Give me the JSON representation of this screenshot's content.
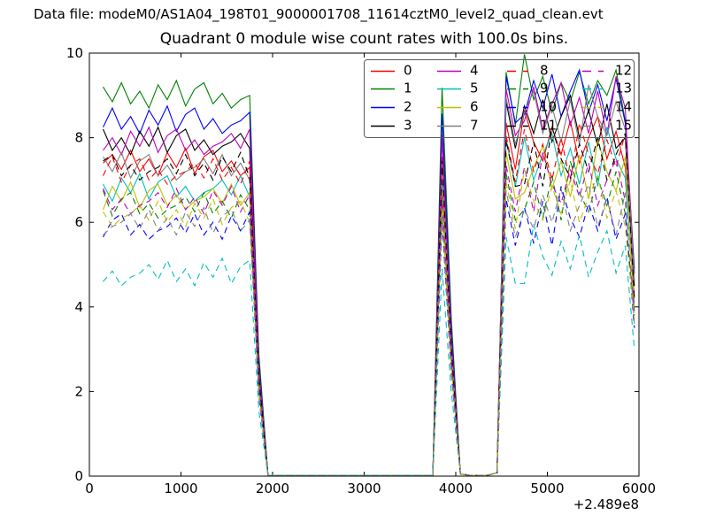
{
  "figure": {
    "data_file_label": "Data file: modeM0/AS1A04_198T01_9000001708_11614cztM0_level2_quad_clean.evt",
    "title": "Quadrant 0 module wise count rates with 100.0s bins."
  },
  "chart_data": {
    "type": "line",
    "title": "Quadrant 0 module wise count rates with 100.0s bins.",
    "xlabel": "",
    "ylabel": "",
    "xlim": [
      0,
      6000
    ],
    "ylim": [
      0,
      10
    ],
    "xticks": [
      0,
      1000,
      2000,
      3000,
      4000,
      5000,
      6000
    ],
    "yticks": [
      0,
      2,
      4,
      6,
      8,
      10
    ],
    "x_offset_label": "+2.489e8",
    "grid": false,
    "legend_position": "upper right",
    "legend_columns": 4,
    "frame_color": "#000000",
    "x": [
      150,
      250,
      350,
      450,
      550,
      650,
      750,
      850,
      950,
      1050,
      1150,
      1250,
      1350,
      1450,
      1550,
      1650,
      1750,
      1850,
      1950,
      2050,
      2150,
      2250,
      2350,
      2450,
      2550,
      2650,
      2750,
      2850,
      2950,
      3050,
      3150,
      3250,
      3350,
      3450,
      3550,
      3650,
      3750,
      3850,
      3950,
      4050,
      4150,
      4250,
      4350,
      4450,
      4550,
      4650,
      4750,
      4850,
      4950,
      5050,
      5150,
      5250,
      5350,
      5450,
      5550,
      5650,
      5750,
      5850,
      5950
    ],
    "series": [
      {
        "name": "0",
        "color": "#ff0000",
        "style": "solid",
        "values": [
          7.4,
          7.6,
          7.25,
          7.7,
          7.2,
          7.5,
          7.1,
          7.65,
          7.3,
          7.75,
          7.15,
          7.55,
          7.7,
          7.2,
          7.45,
          7.1,
          7.3,
          2.37,
          0.02,
          0.02,
          0.02,
          0.02,
          0.02,
          0.02,
          0.02,
          0.02,
          0.02,
          0.02,
          0.02,
          0.02,
          0.02,
          0.02,
          0.02,
          0.02,
          0.02,
          0.02,
          0.02,
          7.55,
          3.11,
          0.05,
          0.02,
          0.02,
          0.02,
          0.08,
          8.35,
          7.25,
          8.65,
          7.9,
          7.45,
          8.25,
          7.6,
          8.4,
          7.4,
          8.0,
          8.5,
          7.5,
          8.15,
          7.3,
          4.2
        ]
      },
      {
        "name": "1",
        "color": "#008000",
        "style": "solid",
        "values": [
          9.2,
          8.85,
          9.3,
          8.8,
          9.1,
          8.7,
          9.25,
          8.9,
          9.35,
          8.75,
          9.15,
          9.3,
          8.8,
          9.05,
          8.7,
          8.9,
          9.0,
          2.88,
          0.02,
          0.02,
          0.02,
          0.02,
          0.02,
          0.02,
          0.02,
          0.02,
          0.02,
          0.02,
          0.02,
          0.02,
          0.02,
          0.02,
          0.02,
          0.02,
          0.02,
          0.02,
          0.02,
          9.18,
          3.78,
          0.05,
          0.02,
          0.02,
          0.02,
          0.08,
          9.55,
          8.3,
          9.97,
          8.9,
          9.45,
          8.6,
          9.3,
          8.85,
          9.55,
          8.8,
          9.35,
          9.0,
          9.6,
          8.4,
          4.9
        ]
      },
      {
        "name": "2",
        "color": "#0000ff",
        "style": "solid",
        "values": [
          8.25,
          8.7,
          8.2,
          8.5,
          8.1,
          8.65,
          8.3,
          8.75,
          8.15,
          8.55,
          8.7,
          8.2,
          8.45,
          8.1,
          8.3,
          8.4,
          8.6,
          2.69,
          0.02,
          0.02,
          0.02,
          0.02,
          0.02,
          0.02,
          0.02,
          0.02,
          0.02,
          0.02,
          0.02,
          0.02,
          0.02,
          0.02,
          0.02,
          0.02,
          0.02,
          0.02,
          0.02,
          8.57,
          3.53,
          0.05,
          0.02,
          0.02,
          0.02,
          0.08,
          9.45,
          8.35,
          8.55,
          9.35,
          8.7,
          9.5,
          8.5,
          9.1,
          9.6,
          8.6,
          9.25,
          8.4,
          9.4,
          8.35,
          4.8
        ]
      },
      {
        "name": "3",
        "color": "#000000",
        "style": "solid",
        "values": [
          8.2,
          7.7,
          8.0,
          7.6,
          8.15,
          7.8,
          8.25,
          7.65,
          8.05,
          8.2,
          7.7,
          7.95,
          7.6,
          7.8,
          7.9,
          8.1,
          7.75,
          2.53,
          0.02,
          0.02,
          0.02,
          0.02,
          0.02,
          0.02,
          0.02,
          0.02,
          0.02,
          0.02,
          0.02,
          0.02,
          0.02,
          0.02,
          0.02,
          0.02,
          0.02,
          0.02,
          0.02,
          8.06,
          3.32,
          0.05,
          0.02,
          0.02,
          0.02,
          0.08,
          8.85,
          7.75,
          8.75,
          8.1,
          8.9,
          7.9,
          8.5,
          9.0,
          8.0,
          8.65,
          7.8,
          8.8,
          7.75,
          8.0,
          4.5
        ]
      },
      {
        "name": "4",
        "color": "#bf00bf",
        "style": "solid",
        "values": [
          7.7,
          8.0,
          7.6,
          8.15,
          7.8,
          8.25,
          7.65,
          8.05,
          8.2,
          7.7,
          7.95,
          7.6,
          7.8,
          7.9,
          8.1,
          7.75,
          8.2,
          2.53,
          0.02,
          0.02,
          0.02,
          0.02,
          0.02,
          0.02,
          0.02,
          0.02,
          0.02,
          0.02,
          0.02,
          0.02,
          0.02,
          0.02,
          0.02,
          0.02,
          0.02,
          0.02,
          0.02,
          8.06,
          3.32,
          0.05,
          0.02,
          0.02,
          0.02,
          0.08,
          9.15,
          8.05,
          8.4,
          9.2,
          8.2,
          8.8,
          9.3,
          8.3,
          8.95,
          8.1,
          9.1,
          8.05,
          9.45,
          8.7,
          4.6
        ]
      },
      {
        "name": "5",
        "color": "#00bfbf",
        "style": "solid",
        "values": [
          6.9,
          6.5,
          7.05,
          6.7,
          7.15,
          6.55,
          6.95,
          7.1,
          6.6,
          6.85,
          6.5,
          6.7,
          6.8,
          7.0,
          6.65,
          7.1,
          6.6,
          2.18,
          0.02,
          0.02,
          0.02,
          0.02,
          0.02,
          0.02,
          0.02,
          0.02,
          0.02,
          0.02,
          0.02,
          0.02,
          0.02,
          0.02,
          0.02,
          0.02,
          0.02,
          0.02,
          0.02,
          6.94,
          2.86,
          0.05,
          0.02,
          0.02,
          0.02,
          0.08,
          7.95,
          6.85,
          8.0,
          7.0,
          7.6,
          8.1,
          7.1,
          7.75,
          6.9,
          7.9,
          6.85,
          8.25,
          7.5,
          7.05,
          4.1
        ]
      },
      {
        "name": "6",
        "color": "#bfbf00",
        "style": "solid",
        "values": [
          6.3,
          6.85,
          6.5,
          6.95,
          6.35,
          6.75,
          6.9,
          6.4,
          6.65,
          6.3,
          6.5,
          6.6,
          6.8,
          6.45,
          6.9,
          6.4,
          6.7,
          2.11,
          0.02,
          0.02,
          0.02,
          0.02,
          0.02,
          0.02,
          0.02,
          0.02,
          0.02,
          0.02,
          0.02,
          0.02,
          0.02,
          0.02,
          0.02,
          0.02,
          0.02,
          0.02,
          0.02,
          6.73,
          2.77,
          0.05,
          0.02,
          0.02,
          0.02,
          0.08,
          7.65,
          6.55,
          6.7,
          7.3,
          7.8,
          6.8,
          7.45,
          6.6,
          7.6,
          6.55,
          7.95,
          7.2,
          6.75,
          7.55,
          3.9
        ]
      },
      {
        "name": "7",
        "color": "#808080",
        "style": "solid",
        "values": [
          7.55,
          7.2,
          7.65,
          7.05,
          7.45,
          7.6,
          7.1,
          7.35,
          7.0,
          7.2,
          7.3,
          7.5,
          7.15,
          7.6,
          7.1,
          7.4,
          7.0,
          2.34,
          0.02,
          0.02,
          0.02,
          0.02,
          0.02,
          0.02,
          0.02,
          0.02,
          0.02,
          0.02,
          0.02,
          0.02,
          0.02,
          0.02,
          0.02,
          0.02,
          0.02,
          0.02,
          0.02,
          7.45,
          3.07,
          0.05,
          0.02,
          0.02,
          0.02,
          0.08,
          8.95,
          7.85,
          8.6,
          9.1,
          8.1,
          8.75,
          7.9,
          8.9,
          7.85,
          9.25,
          8.5,
          8.05,
          8.85,
          8.2,
          4.6
        ]
      },
      {
        "name": "8",
        "color": "#ff0000",
        "style": "dashed",
        "values": [
          7.1,
          7.55,
          6.95,
          7.35,
          7.5,
          7.0,
          7.25,
          6.9,
          7.1,
          7.2,
          7.4,
          7.05,
          7.5,
          7.0,
          7.3,
          6.9,
          7.45,
          2.3,
          0.02,
          0.02,
          0.02,
          0.02,
          0.02,
          0.02,
          0.02,
          0.02,
          0.02,
          0.02,
          0.02,
          0.02,
          0.02,
          0.02,
          0.02,
          0.02,
          0.02,
          0.02,
          0.02,
          7.34,
          3.02,
          0.05,
          0.02,
          0.02,
          0.02,
          0.08,
          8.05,
          6.95,
          8.2,
          7.2,
          7.85,
          7.0,
          8.0,
          6.95,
          8.35,
          7.6,
          7.15,
          7.95,
          7.3,
          8.1,
          4.2
        ]
      },
      {
        "name": "9",
        "color": "#008000",
        "style": "dashed",
        "values": [
          6.75,
          6.15,
          6.55,
          6.7,
          6.2,
          6.45,
          6.1,
          6.3,
          6.4,
          6.6,
          6.25,
          6.7,
          6.2,
          6.5,
          6.1,
          6.65,
          6.3,
          2.05,
          0.02,
          0.02,
          0.02,
          0.02,
          0.02,
          0.02,
          0.02,
          0.02,
          0.02,
          0.02,
          0.02,
          0.02,
          0.02,
          0.02,
          0.02,
          0.02,
          0.02,
          0.02,
          0.02,
          6.53,
          2.69,
          0.05,
          0.02,
          0.02,
          0.02,
          0.08,
          7.15,
          6.05,
          6.3,
          6.95,
          6.1,
          7.1,
          6.05,
          7.45,
          6.7,
          6.25,
          7.05,
          6.4,
          7.2,
          6.2,
          3.8
        ]
      },
      {
        "name": "10",
        "color": "#0000ff",
        "style": "dashed",
        "values": [
          5.65,
          6.05,
          6.2,
          5.7,
          5.95,
          5.6,
          5.8,
          5.9,
          6.1,
          5.75,
          6.2,
          5.7,
          6.0,
          5.6,
          6.15,
          5.8,
          6.25,
          1.89,
          0.02,
          0.02,
          0.02,
          0.02,
          0.02,
          0.02,
          0.02,
          0.02,
          0.02,
          0.02,
          0.02,
          0.02,
          0.02,
          0.02,
          0.02,
          0.02,
          0.02,
          0.02,
          0.02,
          6.02,
          2.48,
          0.05,
          0.02,
          0.02,
          0.02,
          0.08,
          6.55,
          5.45,
          6.35,
          5.5,
          6.5,
          5.45,
          6.85,
          6.1,
          5.65,
          6.45,
          5.8,
          6.6,
          5.6,
          6.2,
          3.5
        ]
      },
      {
        "name": "11",
        "color": "#000000",
        "style": "dashed",
        "values": [
          7.45,
          7.6,
          7.1,
          7.35,
          7.0,
          7.2,
          7.3,
          7.5,
          7.15,
          7.6,
          7.1,
          7.4,
          7.0,
          7.55,
          7.2,
          7.65,
          7.05,
          2.34,
          0.02,
          0.02,
          0.02,
          0.02,
          0.02,
          0.02,
          0.02,
          0.02,
          0.02,
          0.02,
          0.02,
          0.02,
          0.02,
          0.02,
          0.02,
          0.02,
          0.02,
          0.02,
          0.02,
          7.45,
          3.07,
          0.05,
          0.02,
          0.02,
          0.02,
          0.08,
          7.95,
          6.85,
          6.9,
          7.9,
          6.85,
          8.25,
          7.5,
          7.05,
          7.85,
          7.2,
          8.0,
          7.0,
          7.6,
          8.1,
          4.2
        ]
      },
      {
        "name": "12",
        "color": "#bf00bf",
        "style": "dashed",
        "values": [
          6.8,
          6.3,
          6.55,
          6.2,
          6.4,
          6.5,
          6.7,
          6.35,
          6.8,
          6.3,
          6.6,
          6.2,
          6.75,
          6.4,
          6.85,
          6.25,
          6.65,
          2.08,
          0.02,
          0.02,
          0.02,
          0.02,
          0.02,
          0.02,
          0.02,
          0.02,
          0.02,
          0.02,
          0.02,
          0.02,
          0.02,
          0.02,
          0.02,
          0.02,
          0.02,
          0.02,
          0.02,
          6.63,
          2.73,
          0.05,
          0.02,
          0.02,
          0.02,
          0.08,
          7.35,
          6.25,
          7.3,
          6.25,
          7.65,
          6.9,
          6.45,
          7.25,
          6.6,
          7.4,
          6.4,
          7.0,
          7.5,
          6.5,
          3.9
        ]
      },
      {
        "name": "13",
        "color": "#00bfbf",
        "style": "dashed",
        "values": [
          4.6,
          4.85,
          4.5,
          4.7,
          4.8,
          5.0,
          4.65,
          5.1,
          4.6,
          4.9,
          4.5,
          5.05,
          4.7,
          5.15,
          4.55,
          4.95,
          5.1,
          1.54,
          0.02,
          0.02,
          0.02,
          0.02,
          0.02,
          0.02,
          0.02,
          0.02,
          0.02,
          0.02,
          0.02,
          0.02,
          0.02,
          0.02,
          0.02,
          0.02,
          0.02,
          0.02,
          0.02,
          4.9,
          2.02,
          0.05,
          0.02,
          0.02,
          0.02,
          0.08,
          5.65,
          4.55,
          4.55,
          5.95,
          5.2,
          4.75,
          5.55,
          4.9,
          5.7,
          4.7,
          5.3,
          5.8,
          4.8,
          5.45,
          3.0
        ]
      },
      {
        "name": "14",
        "color": "#bfbf00",
        "style": "dashed",
        "values": [
          6.25,
          5.9,
          6.1,
          6.2,
          6.4,
          6.05,
          6.5,
          6.0,
          6.3,
          5.9,
          6.45,
          6.1,
          6.55,
          5.95,
          6.35,
          6.5,
          6.0,
          1.98,
          0.02,
          0.02,
          0.02,
          0.02,
          0.02,
          0.02,
          0.02,
          0.02,
          0.02,
          0.02,
          0.02,
          0.02,
          0.02,
          0.02,
          0.02,
          0.02,
          0.02,
          0.02,
          0.02,
          6.32,
          2.6,
          0.05,
          0.02,
          0.02,
          0.02,
          0.08,
          6.95,
          5.85,
          7.25,
          6.5,
          6.05,
          6.85,
          6.2,
          7.0,
          6.0,
          6.6,
          7.1,
          6.1,
          6.75,
          5.9,
          3.7
        ]
      },
      {
        "name": "15",
        "color": "#808080",
        "style": "dashed",
        "values": [
          5.7,
          5.9,
          6.0,
          6.2,
          5.85,
          6.3,
          5.8,
          6.1,
          5.7,
          6.25,
          5.9,
          6.35,
          5.75,
          6.15,
          6.3,
          5.8,
          6.05,
          1.92,
          0.02,
          0.02,
          0.02,
          0.02,
          0.02,
          0.02,
          0.02,
          0.02,
          0.02,
          0.02,
          0.02,
          0.02,
          0.02,
          0.02,
          0.02,
          0.02,
          0.02,
          0.02,
          0.02,
          6.12,
          2.52,
          0.05,
          0.02,
          0.02,
          0.02,
          0.08,
          6.75,
          5.65,
          6.3,
          5.85,
          6.65,
          6.0,
          6.8,
          5.8,
          6.4,
          6.9,
          5.9,
          6.55,
          5.7,
          6.7,
          3.6
        ]
      }
    ]
  }
}
